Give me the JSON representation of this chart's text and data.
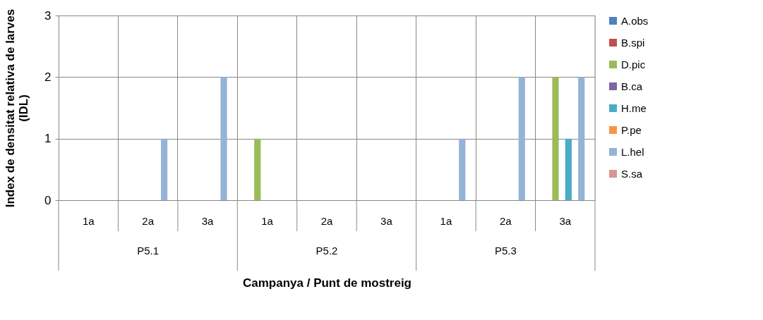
{
  "chart_data": {
    "type": "bar",
    "xlabel": "Campanya / Punt de mostreig",
    "ylabel": "Index de densitat relativa de larves\n(IDL)",
    "categories": [
      "1a",
      "2a",
      "3a",
      "1a",
      "2a",
      "3a",
      "1a",
      "2a",
      "3a"
    ],
    "annotations": [
      "P5.1",
      "P5.2",
      "P5.3"
    ],
    "series": [
      {
        "name": "A.obs",
        "color": "#4f81bd",
        "values": [
          0,
          0,
          0,
          0,
          0,
          0,
          0,
          0,
          0
        ]
      },
      {
        "name": "B.spi",
        "color": "#c0504d",
        "values": [
          0,
          0,
          0,
          0,
          0,
          0,
          0,
          0,
          0
        ]
      },
      {
        "name": "D.pic",
        "color": "#9bbb59",
        "values": [
          0,
          0,
          0,
          1,
          0,
          0,
          0,
          0,
          2
        ]
      },
      {
        "name": "B.ca",
        "color": "#8064a2",
        "values": [
          0,
          0,
          0,
          0,
          0,
          0,
          0,
          0,
          0
        ]
      },
      {
        "name": "H.me",
        "color": "#4bacc6",
        "values": [
          0,
          0,
          0,
          0,
          0,
          0,
          0,
          0,
          1
        ]
      },
      {
        "name": "P.pe",
        "color": "#f79646",
        "values": [
          0,
          0,
          0,
          0,
          0,
          0,
          0,
          0,
          0
        ]
      },
      {
        "name": "L.hel",
        "color": "#95b3d7",
        "values": [
          0,
          1,
          2,
          0,
          0,
          0,
          1,
          2,
          2
        ]
      },
      {
        "name": "S.sa",
        "color": "#d99694",
        "values": [
          0,
          0,
          0,
          0,
          0,
          0,
          0,
          0,
          0
        ]
      }
    ],
    "ylim": [
      0,
      3
    ],
    "yticks": [
      0,
      1,
      2,
      3
    ],
    "grid": true,
    "legend": "right"
  }
}
